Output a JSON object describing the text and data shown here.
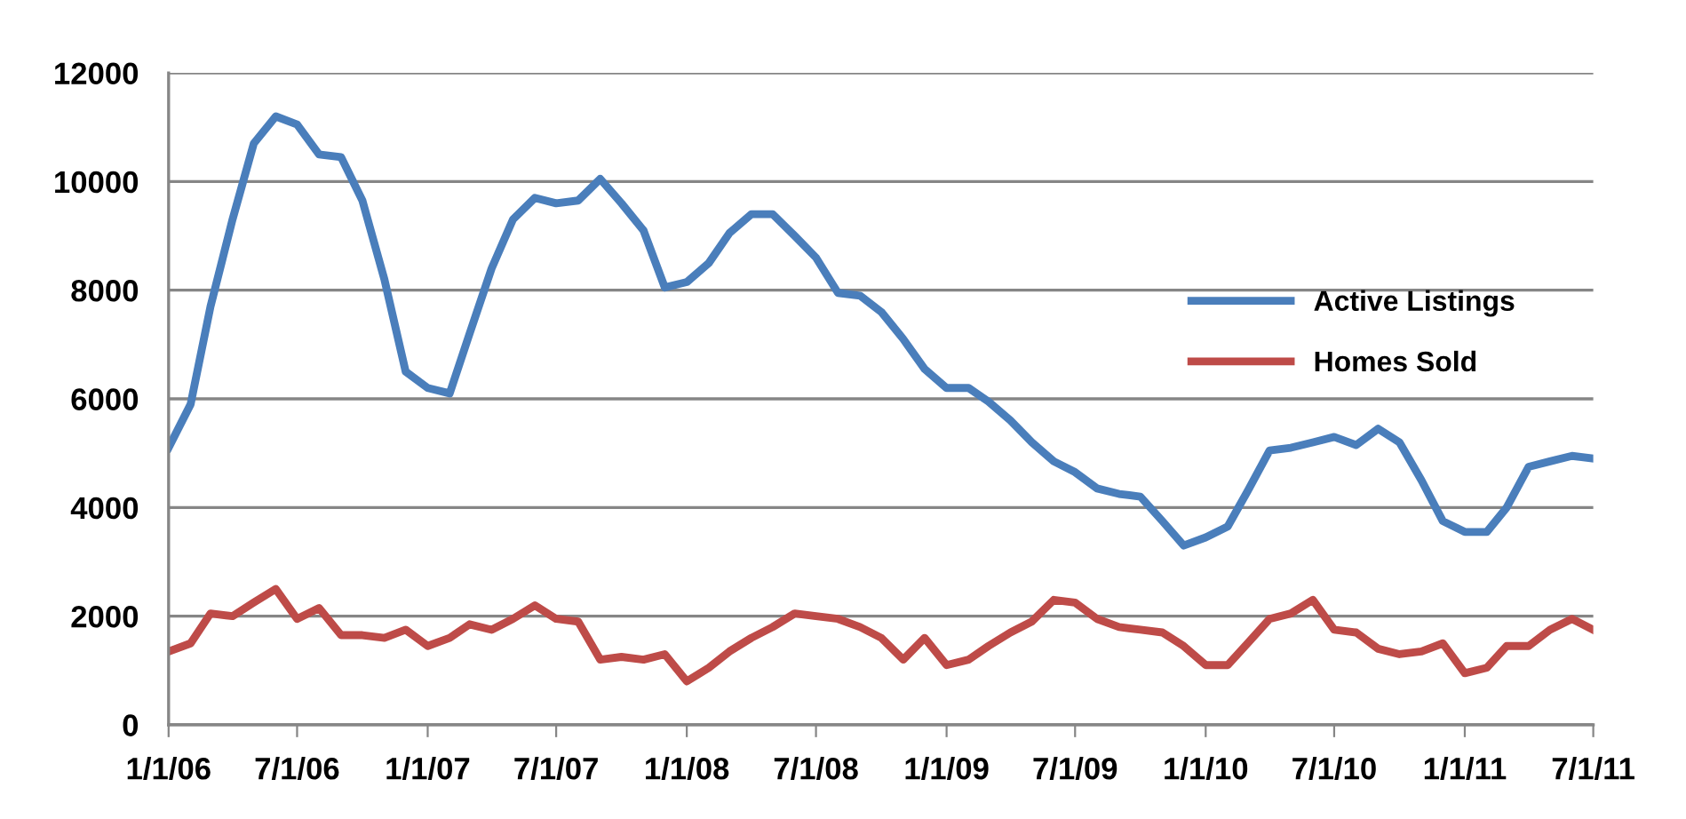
{
  "chart_data": {
    "type": "line",
    "x": [
      "2006-01",
      "2006-02",
      "2006-03",
      "2006-04",
      "2006-05",
      "2006-06",
      "2006-07",
      "2006-08",
      "2006-09",
      "2006-10",
      "2006-11",
      "2006-12",
      "2007-01",
      "2007-02",
      "2007-03",
      "2007-04",
      "2007-05",
      "2007-06",
      "2007-07",
      "2007-08",
      "2007-09",
      "2007-10",
      "2007-11",
      "2007-12",
      "2008-01",
      "2008-02",
      "2008-03",
      "2008-04",
      "2008-05",
      "2008-06",
      "2008-07",
      "2008-08",
      "2008-09",
      "2008-10",
      "2008-11",
      "2008-12",
      "2009-01",
      "2009-02",
      "2009-03",
      "2009-04",
      "2009-05",
      "2009-06",
      "2009-07",
      "2009-08",
      "2009-09",
      "2009-10",
      "2009-11",
      "2009-12",
      "2010-01",
      "2010-02",
      "2010-03",
      "2010-04",
      "2010-05",
      "2010-06",
      "2010-07",
      "2010-08",
      "2010-09",
      "2010-10",
      "2010-11",
      "2010-12",
      "2011-01",
      "2011-02",
      "2011-03",
      "2011-04",
      "2011-05",
      "2011-06",
      "2011-07"
    ],
    "series": [
      {
        "name": "Active Listings",
        "color": "#4a7ebb",
        "values": [
          5100,
          5900,
          7700,
          9300,
          10700,
          11200,
          11050,
          10500,
          10450,
          9650,
          8200,
          6500,
          6200,
          6100,
          7200,
          8400,
          9300,
          9700,
          9600,
          9650,
          10050,
          9600,
          9100,
          8050,
          8150,
          8500,
          9050,
          9400,
          9400,
          9000,
          8600,
          7950,
          7900,
          7600,
          7100,
          6550,
          6200,
          6200,
          5950,
          5600,
          5200,
          4850,
          4650,
          4350,
          4250,
          4200,
          3750,
          3300,
          3450,
          3650,
          4300,
          5050,
          5100,
          5200,
          5300,
          5150,
          5450,
          5200,
          4500,
          3750,
          3550,
          3550,
          4000,
          4750,
          4850,
          4950,
          4900
        ]
      },
      {
        "name": "Homes Sold",
        "color": "#be4b48",
        "values": [
          1350,
          1500,
          2050,
          2000,
          2250,
          2500,
          1950,
          2150,
          1650,
          1650,
          1600,
          1750,
          1450,
          1600,
          1850,
          1750,
          1950,
          2200,
          1950,
          1900,
          1200,
          1250,
          1200,
          1300,
          800,
          1050,
          1350,
          1600,
          1800,
          2050,
          2000,
          1950,
          1800,
          1600,
          1200,
          1600,
          1100,
          1200,
          1450,
          1700,
          1900,
          2300,
          2250,
          1950,
          1800,
          1750,
          1700,
          1450,
          1100,
          1100,
          1500,
          1950,
          2050,
          2300,
          1750,
          1700,
          1400,
          1300,
          1350,
          1500,
          950,
          1050,
          1450,
          1450,
          1750,
          1950,
          1750
        ]
      }
    ],
    "xlim": [
      "2006-01",
      "2011-07"
    ],
    "xticks": [
      {
        "value": "2006-01-01",
        "label": "1/1/06"
      },
      {
        "value": "2006-07-01",
        "label": "7/1/06"
      },
      {
        "value": "2007-01-01",
        "label": "1/1/07"
      },
      {
        "value": "2007-07-01",
        "label": "7/1/07"
      },
      {
        "value": "2008-01-01",
        "label": "1/1/08"
      },
      {
        "value": "2008-07-01",
        "label": "7/1/08"
      },
      {
        "value": "2009-01-01",
        "label": "1/1/09"
      },
      {
        "value": "2009-07-01",
        "label": "7/1/09"
      },
      {
        "value": "2010-01-01",
        "label": "1/1/10"
      },
      {
        "value": "2010-07-01",
        "label": "7/1/10"
      },
      {
        "value": "2011-01-01",
        "label": "1/1/11"
      },
      {
        "value": "2011-07-01",
        "label": "7/1/11"
      }
    ],
    "ylim": [
      0,
      12000
    ],
    "yticks": [
      0,
      2000,
      4000,
      6000,
      8000,
      10000,
      12000
    ],
    "grid": "y",
    "legend": "right",
    "marker": "none",
    "line_style": "solid"
  }
}
